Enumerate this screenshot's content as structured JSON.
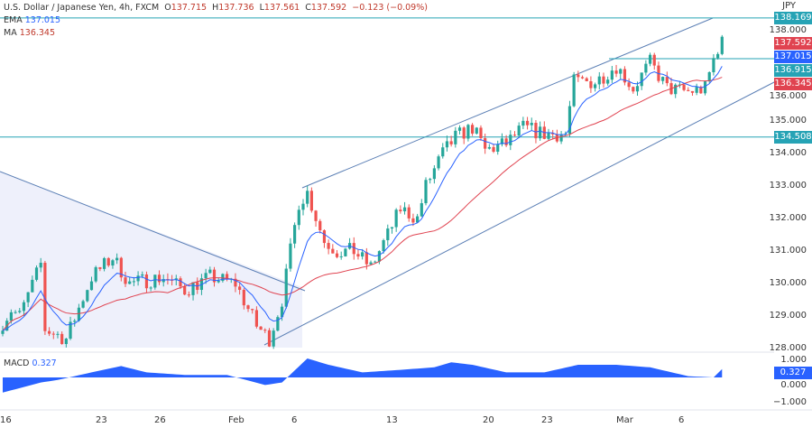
{
  "header": {
    "symbol": "U.S. Dollar / Japanese Yen, 4h, FXCM",
    "o_label": "O",
    "o": "137.715",
    "h_label": "H",
    "h": "137.736",
    "l_label": "L",
    "l": "137.561",
    "c_label": "C",
    "c": "137.592",
    "change": "−0.123 (−0.09%)"
  },
  "ema": {
    "label": "EMA",
    "value": "137.015"
  },
  "ma": {
    "label": "MA",
    "value": "136.345"
  },
  "macd": {
    "label": "MACD",
    "value": "0.327"
  },
  "currency": "JPY",
  "price_axis": [
    "138.000",
    "136.000",
    "135.000",
    "134.000",
    "133.000",
    "132.000",
    "131.000",
    "130.000",
    "129.000",
    "128.000"
  ],
  "macd_axis": [
    "1.000",
    "0.000",
    "−1.000"
  ],
  "tags": [
    {
      "text": "138.169",
      "color": "#26a3b5",
      "price": 138.169
    },
    {
      "text": "137.592",
      "color": "#e04350",
      "price": 137.592
    },
    {
      "text": "137.015",
      "color": "#2962ff",
      "price": 137.015
    },
    {
      "text": "136.915",
      "color": "#26a3b5",
      "price": 136.915
    },
    {
      "text": "136.345",
      "color": "#e04350",
      "price": 136.345
    },
    {
      "text": "134.508",
      "color": "#26a3b5",
      "price": 134.508
    }
  ],
  "dates": [
    "16",
    "23",
    "26",
    "Feb",
    "6",
    "13",
    "20",
    "23",
    "Mar",
    "6"
  ],
  "chart_data": {
    "type": "candlestick",
    "price_keypoints": [
      [
        0,
        128.8
      ],
      [
        2,
        129.2
      ],
      [
        4,
        129.0
      ],
      [
        9,
        130.6
      ],
      [
        10,
        128.6
      ],
      [
        15,
        128.3
      ],
      [
        21,
        130.2
      ],
      [
        26,
        130.8
      ],
      [
        30,
        130.0
      ],
      [
        38,
        130.2
      ],
      [
        43,
        129.8
      ],
      [
        49,
        130.2
      ],
      [
        55,
        130.0
      ],
      [
        60,
        128.7
      ],
      [
        63,
        128.3
      ],
      [
        66,
        129.5
      ],
      [
        68,
        131.0
      ],
      [
        70,
        132.5
      ],
      [
        72,
        132.8
      ],
      [
        76,
        131.3
      ],
      [
        79,
        131.0
      ],
      [
        83,
        131.0
      ],
      [
        87,
        130.5
      ],
      [
        91,
        131.5
      ],
      [
        94,
        132.3
      ],
      [
        98,
        132.0
      ],
      [
        100,
        133.0
      ],
      [
        104,
        134.0
      ],
      [
        107,
        134.5
      ],
      [
        111,
        134.8
      ],
      [
        114,
        134.1
      ],
      [
        119,
        134.3
      ],
      [
        123,
        134.8
      ],
      [
        128,
        134.6
      ],
      [
        133,
        134.6
      ],
      [
        135,
        136.2
      ],
      [
        140,
        136.2
      ],
      [
        145,
        136.7
      ],
      [
        149,
        136.0
      ],
      [
        153,
        136.8
      ],
      [
        157,
        136.0
      ],
      [
        162,
        135.9
      ],
      [
        166,
        136.0
      ],
      [
        168,
        136.9
      ],
      [
        170,
        137.6
      ]
    ],
    "macd_keypoints": [
      [
        0,
        -0.6
      ],
      [
        9,
        -0.2
      ],
      [
        13,
        -0.1
      ],
      [
        21,
        0.2
      ],
      [
        28,
        0.45
      ],
      [
        34,
        0.2
      ],
      [
        43,
        0.1
      ],
      [
        53,
        0.1
      ],
      [
        62,
        -0.3
      ],
      [
        66,
        -0.2
      ],
      [
        72,
        0.75
      ],
      [
        77,
        0.5
      ],
      [
        85,
        0.2
      ],
      [
        94,
        0.3
      ],
      [
        102,
        0.4
      ],
      [
        106,
        0.6
      ],
      [
        111,
        0.5
      ],
      [
        119,
        0.2
      ],
      [
        128,
        0.2
      ],
      [
        136,
        0.5
      ],
      [
        145,
        0.5
      ],
      [
        153,
        0.4
      ],
      [
        162,
        0.05
      ],
      [
        168,
        0.0
      ],
      [
        170,
        0.33
      ]
    ],
    "ema_period": 9,
    "ma_period": 30
  },
  "colors": {
    "up": "#26a69a",
    "down": "#ef5350",
    "ema": "#2962ff",
    "ma": "#e04350",
    "line": "#5b7fb5",
    "hline": "#26a3b5",
    "macd": "#2962ff"
  }
}
